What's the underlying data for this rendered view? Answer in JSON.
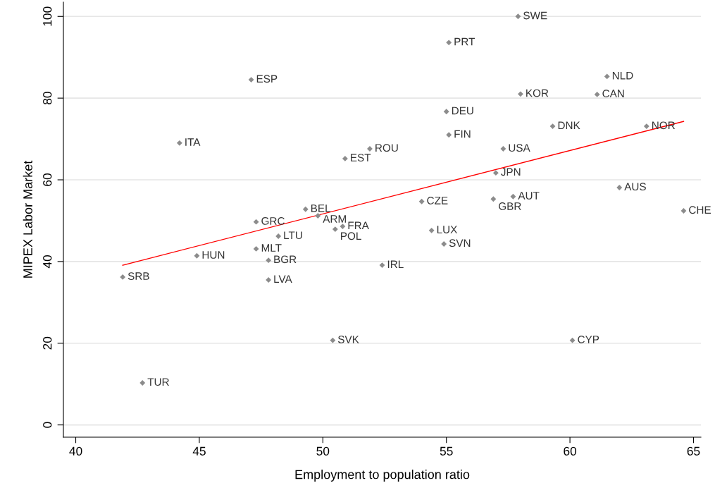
{
  "chart_data": {
    "type": "scatter",
    "xlabel": "Employment to population ratio",
    "ylabel": "MIPEX Labor Market",
    "xlim": [
      39.5,
      65.3
    ],
    "ylim": [
      -3,
      103.5
    ],
    "xticks": [
      40,
      45,
      50,
      55,
      60,
      65
    ],
    "yticks": [
      0,
      20,
      40,
      60,
      80,
      100
    ],
    "grid": "y",
    "series": [
      {
        "marker": "diamond",
        "color": "#8c8c8c",
        "x": [
          57.9,
          55.1,
          47.1,
          61.5,
          58.0,
          61.1,
          55.0,
          59.3,
          63.1,
          55.1,
          44.2,
          51.9,
          57.3,
          50.9,
          57.0,
          62.0,
          57.7,
          56.9,
          54.0,
          64.6,
          49.3,
          49.8,
          47.3,
          50.8,
          50.5,
          54.4,
          48.2,
          54.9,
          47.3,
          44.9,
          47.8,
          52.4,
          41.9,
          47.8,
          50.4,
          60.1,
          42.7
        ],
        "values": [
          100,
          93.6,
          84.5,
          85.3,
          81.0,
          80.9,
          76.7,
          73.1,
          73.1,
          71.0,
          69.0,
          67.6,
          67.6,
          65.2,
          61.7,
          58.1,
          55.9,
          55.3,
          54.7,
          52.4,
          52.8,
          51.2,
          49.7,
          48.6,
          47.9,
          47.6,
          46.2,
          44.3,
          43.1,
          41.4,
          40.3,
          39.1,
          36.2,
          35.5,
          20.7,
          20.7,
          10.3
        ]
      },
      {
        "type": "line",
        "color": "#ff0000",
        "x": [
          41.9,
          64.6
        ],
        "values": [
          39.1,
          74.3
        ]
      }
    ],
    "annotations": [
      {
        "text": "SWE",
        "x": 57.9,
        "y": 100
      },
      {
        "text": "PRT",
        "x": 55.1,
        "y": 93.6
      },
      {
        "text": "ESP",
        "x": 47.1,
        "y": 84.5
      },
      {
        "text": "NLD",
        "x": 61.5,
        "y": 85.3
      },
      {
        "text": "KOR",
        "x": 58.0,
        "y": 81.0
      },
      {
        "text": "CAN",
        "x": 61.1,
        "y": 80.9
      },
      {
        "text": "DEU",
        "x": 55.0,
        "y": 76.7
      },
      {
        "text": "DNK",
        "x": 59.3,
        "y": 73.1
      },
      {
        "text": "NOR",
        "x": 63.1,
        "y": 73.1
      },
      {
        "text": "FIN",
        "x": 55.1,
        "y": 71.0
      },
      {
        "text": "ITA",
        "x": 44.2,
        "y": 69.0
      },
      {
        "text": "ROU",
        "x": 51.9,
        "y": 67.6
      },
      {
        "text": "USA",
        "x": 57.3,
        "y": 67.6
      },
      {
        "text": "EST",
        "x": 50.9,
        "y": 65.2
      },
      {
        "text": "JPN",
        "x": 57.0,
        "y": 61.7
      },
      {
        "text": "AUS",
        "x": 62.0,
        "y": 58.1
      },
      {
        "text": "AUT",
        "x": 57.7,
        "y": 55.9
      },
      {
        "text": "GBR",
        "x": 56.9,
        "y": 55.3
      },
      {
        "text": "CZE",
        "x": 54.0,
        "y": 54.7
      },
      {
        "text": "CHE",
        "x": 64.6,
        "y": 52.4
      },
      {
        "text": "BEL",
        "x": 49.3,
        "y": 52.8
      },
      {
        "text": "ARM",
        "x": 49.8,
        "y": 51.2
      },
      {
        "text": "GRC",
        "x": 47.3,
        "y": 49.7
      },
      {
        "text": "FRA",
        "x": 50.8,
        "y": 48.6
      },
      {
        "text": "POL",
        "x": 50.5,
        "y": 47.9
      },
      {
        "text": "LUX",
        "x": 54.4,
        "y": 47.6
      },
      {
        "text": "LTU",
        "x": 48.2,
        "y": 46.2
      },
      {
        "text": "SVN",
        "x": 54.9,
        "y": 44.3
      },
      {
        "text": "MLT",
        "x": 47.3,
        "y": 43.1
      },
      {
        "text": "HUN",
        "x": 44.9,
        "y": 41.4
      },
      {
        "text": "BGR",
        "x": 47.8,
        "y": 40.3
      },
      {
        "text": "IRL",
        "x": 52.4,
        "y": 39.1
      },
      {
        "text": "SRB",
        "x": 41.9,
        "y": 36.2
      },
      {
        "text": "LVA",
        "x": 47.8,
        "y": 35.5
      },
      {
        "text": "SVK",
        "x": 50.4,
        "y": 20.7
      },
      {
        "text": "CYP",
        "x": 60.1,
        "y": 20.7
      },
      {
        "text": "TUR",
        "x": 42.7,
        "y": 10.3
      }
    ]
  }
}
